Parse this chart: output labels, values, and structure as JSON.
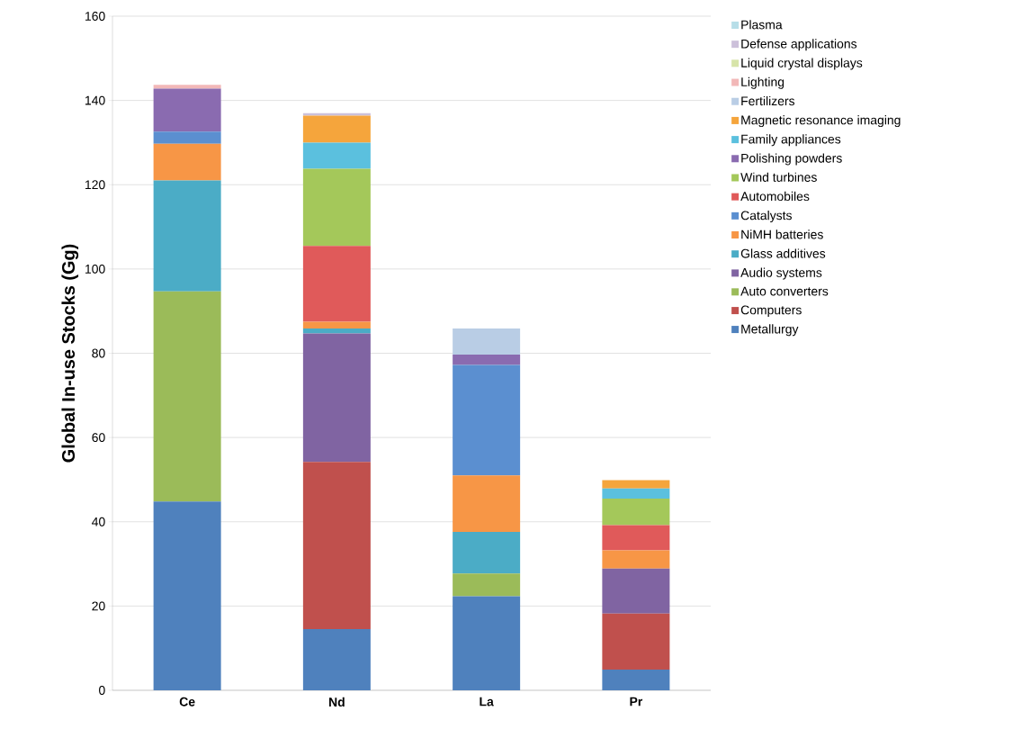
{
  "chart_data": {
    "type": "bar",
    "stacked": true,
    "ylabel": "Global In-use Stocks (Gg)",
    "categories": [
      "Ce",
      "Nd",
      "La",
      "Pr"
    ],
    "ylim": [
      0,
      160
    ],
    "yticks": [
      0,
      20,
      40,
      60,
      80,
      100,
      120,
      140,
      160
    ],
    "grid": "y",
    "legend": "right",
    "series": [
      {
        "name": "Metallurgy",
        "color": "#4f81bd",
        "values": [
          44.8,
          14.5,
          22.3,
          4.9
        ]
      },
      {
        "name": "Computers",
        "color": "#c0504d",
        "values": [
          0,
          39.7,
          0,
          13.3
        ]
      },
      {
        "name": "Auto converters",
        "color": "#9bbb59",
        "values": [
          49.9,
          0,
          5.4,
          0
        ]
      },
      {
        "name": "Audio systems",
        "color": "#8064a2",
        "values": [
          0,
          30.5,
          0,
          10.7
        ]
      },
      {
        "name": "Glass additives",
        "color": "#4bacc6",
        "values": [
          26.3,
          1.2,
          9.9,
          0
        ]
      },
      {
        "name": "NiMH batteries",
        "color": "#f79646",
        "values": [
          8.7,
          1.6,
          13.4,
          4.3
        ]
      },
      {
        "name": "Catalysts",
        "color": "#5b8fd0",
        "values": [
          2.9,
          0,
          26.2,
          0
        ]
      },
      {
        "name": "Automobiles",
        "color": "#e05a5a",
        "values": [
          0,
          18,
          0,
          6
        ]
      },
      {
        "name": "Wind turbines",
        "color": "#a4c85a",
        "values": [
          0,
          18.3,
          0,
          6.3
        ]
      },
      {
        "name": "Polishing powders",
        "color": "#8a6bb0",
        "values": [
          10.2,
          0,
          2.5,
          0
        ]
      },
      {
        "name": "Family appliances",
        "color": "#5bc0de",
        "values": [
          0,
          6.2,
          0,
          2.4
        ]
      },
      {
        "name": "Magnetic resonance imaging",
        "color": "#f5a53c",
        "values": [
          0,
          6.4,
          0,
          2
        ]
      },
      {
        "name": "Fertilizers",
        "color": "#b9cde5",
        "values": [
          0,
          0,
          6.2,
          0
        ]
      },
      {
        "name": "Lighting",
        "color": "#f2b8b8",
        "values": [
          0.9,
          0,
          0,
          0
        ]
      },
      {
        "name": "Liquid crystal displays",
        "color": "#d7e4a9",
        "values": [
          0,
          0,
          0,
          0
        ]
      },
      {
        "name": "Defense applications",
        "color": "#ccc0da",
        "values": [
          0,
          0.6,
          0,
          0
        ]
      },
      {
        "name": "Plasma",
        "color": "#b7dee8",
        "values": [
          0,
          0,
          0,
          0
        ]
      }
    ]
  }
}
